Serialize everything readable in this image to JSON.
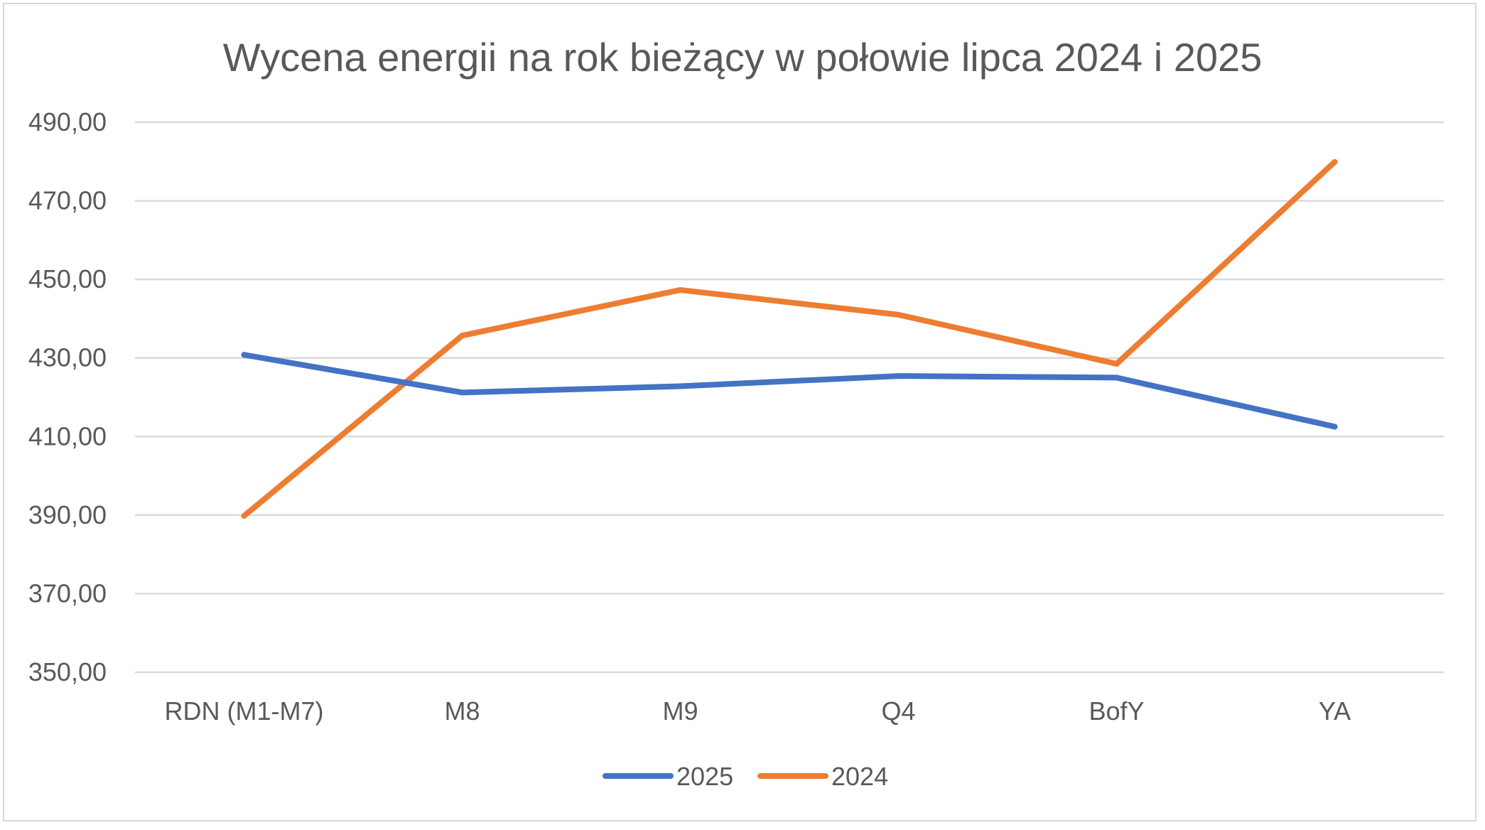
{
  "chart_data": {
    "type": "line",
    "title": "Wycena energii na rok bieżący w połowie lipca 2024 i 2025",
    "categories": [
      "RDN (M1-M7)",
      "M8",
      "M9",
      "Q4",
      "BofY",
      "YA"
    ],
    "series": [
      {
        "name": "2025",
        "color": "#4472C4",
        "values": [
          430.8,
          421.2,
          422.8,
          425.4,
          425.0,
          412.5
        ]
      },
      {
        "name": "2024",
        "color": "#ED7D31",
        "values": [
          389.8,
          435.7,
          447.3,
          441.0,
          428.5,
          479.9
        ]
      }
    ],
    "ylim": [
      350,
      490
    ],
    "ystep": 20,
    "ytick_labels": [
      "350,00",
      "370,00",
      "390,00",
      "410,00",
      "430,00",
      "450,00",
      "470,00",
      "490,00"
    ],
    "xlabel": "",
    "ylabel": "",
    "grid": true,
    "legend_position": "bottom"
  }
}
